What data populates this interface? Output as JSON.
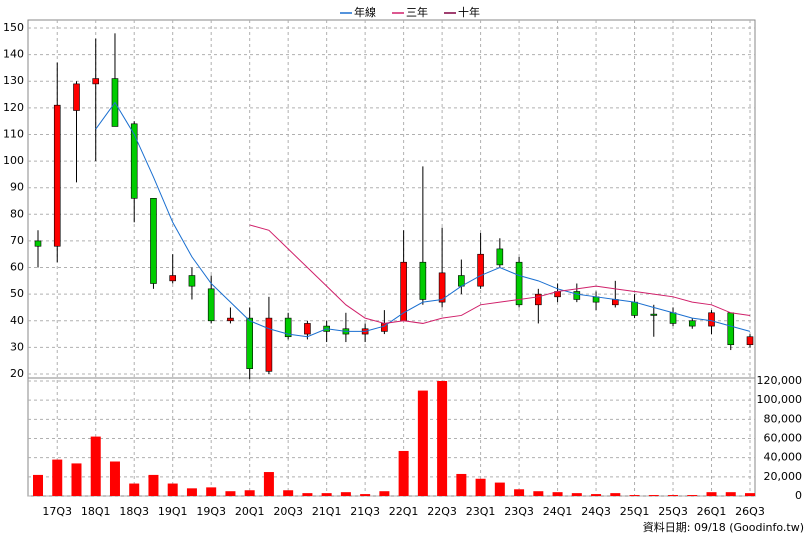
{
  "chart_data": {
    "type": "candlestick",
    "categories": [
      null,
      "17Q3",
      null,
      "18Q1",
      null,
      "18Q3",
      null,
      "19Q1",
      null,
      "19Q3",
      null,
      "20Q1",
      null,
      "20Q3",
      null,
      "21Q1",
      null,
      "21Q3",
      null,
      "22Q1",
      null,
      "22Q3",
      null,
      "23Q1",
      null,
      "23Q3",
      null,
      "24Q1",
      null,
      "24Q3",
      null,
      "25Q1",
      null,
      "25Q3",
      null,
      "26Q1",
      null,
      "26Q3"
    ],
    "open": [
      70,
      68,
      119,
      129,
      131,
      114,
      86,
      55,
      57,
      52,
      40,
      41,
      21,
      41,
      35,
      38,
      37,
      35,
      36,
      40,
      62,
      47,
      57,
      53,
      67,
      62,
      46,
      49,
      51,
      49,
      46,
      47,
      42.5,
      43,
      40,
      38,
      43,
      31
    ],
    "high": [
      74,
      137,
      130,
      146,
      148,
      115,
      86,
      65,
      60,
      57,
      45,
      45,
      49,
      43,
      40,
      40,
      43,
      39,
      44,
      74,
      98,
      75,
      63,
      73,
      71,
      64,
      52,
      54,
      54,
      51,
      55,
      50,
      46,
      45,
      41,
      44,
      43,
      35
    ],
    "low": [
      60,
      62,
      92,
      100,
      113,
      77,
      52,
      54,
      48,
      39,
      39,
      18,
      20,
      33,
      33,
      32,
      32,
      32,
      35,
      40,
      46,
      45,
      50,
      52,
      60,
      45,
      39,
      47,
      47,
      44,
      45,
      41,
      34,
      38,
      37,
      35,
      29,
      30
    ],
    "close": [
      68,
      121,
      129,
      131,
      113,
      86,
      54,
      57,
      53,
      40,
      41,
      22,
      41,
      34,
      39,
      36,
      35,
      37,
      39,
      62,
      48,
      58,
      53,
      65,
      61,
      46,
      50,
      51,
      48,
      47,
      48,
      42,
      42,
      39,
      38,
      43,
      31,
      34
    ],
    "up_color": "#ff0000",
    "down_color": "#00cc00",
    "series": [
      {
        "name": "年線",
        "color": "#1a6fd0",
        "values": [
          null,
          null,
          null,
          112,
          122,
          110,
          94,
          77,
          64,
          54,
          47,
          40,
          37,
          35,
          34,
          37,
          36,
          36,
          38,
          43,
          47,
          48,
          53,
          57,
          60,
          57,
          55,
          52,
          50,
          49,
          48,
          47,
          45,
          43,
          41,
          40,
          38,
          36
        ]
      },
      {
        "name": "三年",
        "color": "#d0206a",
        "values": [
          null,
          null,
          null,
          null,
          null,
          null,
          null,
          null,
          null,
          null,
          null,
          76,
          74,
          67,
          60,
          53,
          46,
          41,
          39,
          40,
          39,
          41,
          42,
          46,
          47,
          48,
          49,
          51,
          52,
          53,
          52,
          51,
          50,
          49,
          47,
          46,
          43,
          42
        ]
      },
      {
        "name": "十年",
        "color": "#800040",
        "values": [
          null,
          null,
          null,
          null,
          null,
          null,
          null,
          null,
          null,
          null,
          null,
          null,
          null,
          null,
          null,
          null,
          null,
          null,
          null,
          null,
          null,
          null,
          null,
          null,
          null,
          null,
          null,
          null,
          null,
          null,
          null,
          null,
          null,
          null,
          null,
          null,
          null,
          null
        ]
      }
    ],
    "volume": {
      "color": "#ff0000",
      "axis": "y2",
      "values": [
        22000,
        38000,
        34000,
        62000,
        36000,
        13000,
        22000,
        13000,
        8000,
        9000,
        5000,
        6000,
        25000,
        6000,
        3000,
        3000,
        4000,
        2000,
        5000,
        47000,
        110000,
        120000,
        23000,
        18000,
        14000,
        7000,
        5000,
        4000,
        3000,
        2000,
        3000,
        1000,
        1000,
        1000,
        1000,
        4000,
        4000,
        3000
      ]
    },
    "ylim": [
      20,
      150
    ],
    "yticks": [
      20,
      30,
      40,
      50,
      60,
      70,
      80,
      90,
      100,
      110,
      120,
      130,
      140,
      150
    ],
    "y2lim": [
      0,
      120000
    ],
    "y2ticks": [
      0,
      {
        "value": 20000,
        "label": "20,000"
      },
      {
        "value": 40000,
        "label": "40,000"
      },
      {
        "value": 60000,
        "label": "60,000"
      },
      {
        "value": 80000,
        "label": "80,000"
      },
      {
        "value": 100000,
        "label": "100,000"
      },
      {
        "value": 120000,
        "label": "120,000"
      }
    ],
    "grid": true,
    "legend": "top",
    "footer": "資料日期: 09/18 (Goodinfo.tw)"
  }
}
